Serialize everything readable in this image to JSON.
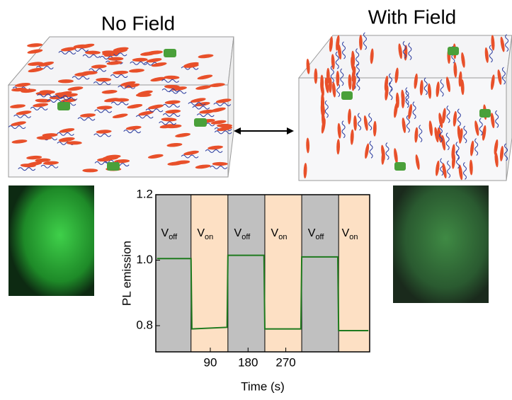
{
  "panels": {
    "left_title": "No Field",
    "right_title": "With Field"
  },
  "chart_data": {
    "type": "line",
    "x_label": "Time (s)",
    "y_label": "PL emission",
    "xlim": [
      -40,
      470
    ],
    "ylim": [
      0.72,
      1.2
    ],
    "xticks": [
      90,
      180,
      270
    ],
    "yticks": [
      {
        "value": 1.2,
        "label": "1.2"
      },
      {
        "value": 1.0,
        "label": "1.0"
      },
      {
        "value": 0.8,
        "label": "0.8"
      }
    ],
    "regions": [
      {
        "start": -40,
        "end": 44,
        "label": "V",
        "subscript": "off",
        "color": "#c0c0c0"
      },
      {
        "start": 44,
        "end": 132,
        "label": "V",
        "subscript": "on",
        "color": "#fde0c4"
      },
      {
        "start": 132,
        "end": 220,
        "label": "V",
        "subscript": "off",
        "color": "#c0c0c0"
      },
      {
        "start": 220,
        "end": 308,
        "label": "V",
        "subscript": "on",
        "color": "#fde0c4"
      },
      {
        "start": 308,
        "end": 396,
        "label": "V",
        "subscript": "off",
        "color": "#c0c0c0"
      },
      {
        "start": 396,
        "end": 470,
        "label": "V",
        "subscript": "on",
        "color": "#fde0c4"
      }
    ],
    "series": [
      {
        "color": "#1e7a1e",
        "x": [
          -37,
          44,
          46,
          130,
          132,
          218,
          220,
          306,
          308,
          394,
          396,
          467
        ],
        "values": [
          1.005,
          1.005,
          0.79,
          0.795,
          1.015,
          1.015,
          0.79,
          0.79,
          1.01,
          1.01,
          0.785,
          0.785
        ]
      }
    ]
  }
}
